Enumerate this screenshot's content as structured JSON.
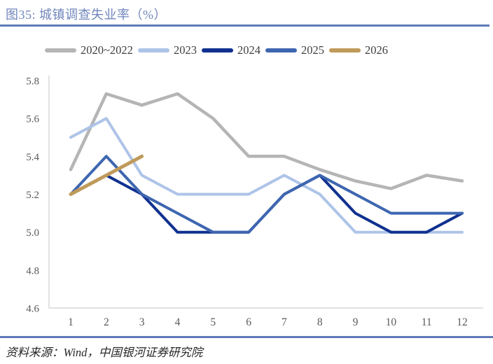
{
  "header": {
    "title": "图35: 城镇调查失业率（%）"
  },
  "footer": {
    "source": "资料来源：Wind，中国银河证券研究院"
  },
  "colors": {
    "title_text": "#7187bd",
    "rule": "#5f7ab8",
    "axis_line": "#d9d9d9",
    "tick_text": "#595959",
    "legend_text": "#404040",
    "source_text": "#262626"
  },
  "chart_data": {
    "type": "line",
    "title": "城镇调查失业率（%）",
    "figure_label": "图35",
    "xlabel": "",
    "ylabel": "",
    "x": [
      "1",
      "2",
      "3",
      "4",
      "5",
      "6",
      "7",
      "8",
      "9",
      "10",
      "11",
      "12"
    ],
    "ylim": [
      4.6,
      5.8
    ],
    "yticks": [
      "5.8",
      "5.6",
      "5.4",
      "5.2",
      "5.0",
      "4.8",
      "4.6"
    ],
    "grid": false,
    "legend_position": "top",
    "series": [
      {
        "name": "2020~2022",
        "color": "#b5b5b5",
        "stroke_width": 4.5,
        "values": [
          5.33,
          5.73,
          5.67,
          5.73,
          5.6,
          5.4,
          5.4,
          5.33,
          5.27,
          5.23,
          5.3,
          5.27
        ]
      },
      {
        "name": "2023",
        "color": "#aec4e8",
        "stroke_width": 4,
        "values": [
          5.5,
          5.6,
          5.3,
          5.2,
          5.2,
          5.2,
          5.3,
          5.2,
          5.0,
          5.0,
          5.0,
          5.0
        ]
      },
      {
        "name": "2024",
        "color": "#10318f",
        "stroke_width": 4,
        "values": [
          5.2,
          5.3,
          5.2,
          5.0,
          5.0,
          5.0,
          5.2,
          5.3,
          5.1,
          5.0,
          5.0,
          5.1
        ]
      },
      {
        "name": "2025",
        "color": "#3e66b0",
        "stroke_width": 4,
        "values": [
          5.2,
          5.4,
          5.2,
          5.1,
          5.0,
          5.0,
          5.2,
          5.3,
          5.2,
          5.1,
          5.1,
          5.1
        ]
      },
      {
        "name": "2026",
        "color": "#bf9a5a",
        "stroke_width": 5,
        "values": [
          5.2,
          5.3,
          5.4,
          null,
          null,
          null,
          null,
          null,
          null,
          null,
          null,
          null
        ]
      }
    ]
  }
}
